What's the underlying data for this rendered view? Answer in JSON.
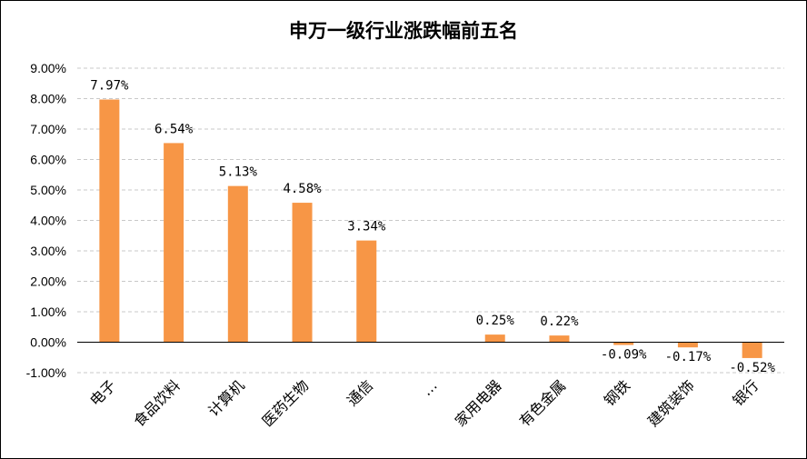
{
  "chart_data": {
    "type": "bar",
    "title": "申万一级行业涨跌幅前五名",
    "categories": [
      "电子",
      "食品饮料",
      "计算机",
      "医药生物",
      "通信",
      "…",
      "家用电器",
      "有色金属",
      "钢铁",
      "建筑装饰",
      "银行"
    ],
    "values": [
      7.97,
      6.54,
      5.13,
      4.58,
      3.34,
      null,
      0.25,
      0.22,
      -0.09,
      -0.17,
      -0.52
    ],
    "data_labels": [
      "7.97%",
      "6.54%",
      "5.13%",
      "4.58%",
      "3.34%",
      "",
      "0.25%",
      "0.22%",
      "-0.09%",
      "-0.17%",
      "-0.52%"
    ],
    "ylim": [
      -1,
      9
    ],
    "y_ticks": [
      9,
      8,
      7,
      6,
      5,
      4,
      3,
      2,
      1,
      0,
      -1
    ],
    "y_tick_labels": [
      "9.00%",
      "8.00%",
      "7.00%",
      "6.00%",
      "5.00%",
      "4.00%",
      "3.00%",
      "2.00%",
      "1.00%",
      "0.00%",
      "-1.00%"
    ],
    "xlabel": "",
    "ylabel": "",
    "grid": true,
    "legend": "none",
    "bar_color": "#F79646"
  }
}
